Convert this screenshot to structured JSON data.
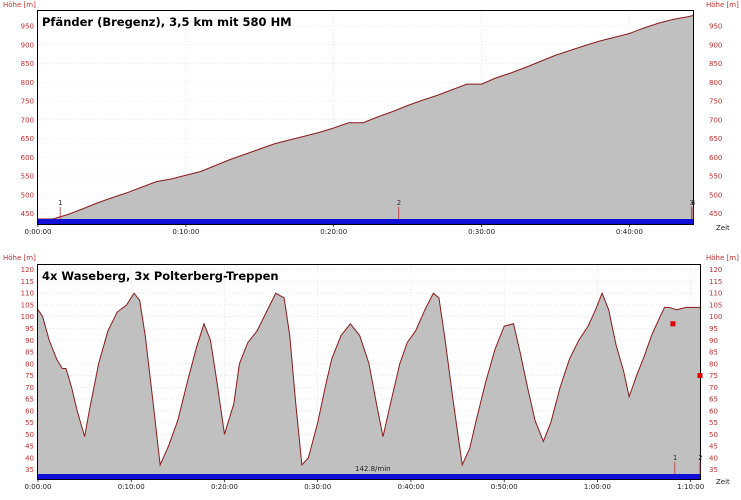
{
  "colors": {
    "profile_fill": "#c0c0c0",
    "profile_line": "#8b1a1a",
    "track_bar": "#1010d8",
    "axis_text": "#c03030",
    "grid": "#d8d8d8",
    "marker": "#c03030",
    "point": "#e00000"
  },
  "chart_data": [
    {
      "type": "area",
      "title": "Pfänder (Bregenz), 3,5 km mit 580 HM",
      "ylabel_left": "Höhe [m]",
      "ylabel_right": "Höhe [m]",
      "xlabel": "Zeit",
      "x_unit": "minutes",
      "xlim": [
        0,
        44.3
      ],
      "ylim": [
        422,
        990
      ],
      "y_ticks": [
        450,
        500,
        550,
        600,
        650,
        700,
        750,
        800,
        850,
        900,
        950
      ],
      "x_ticks": [
        {
          "value": 0,
          "label": "0:00:00"
        },
        {
          "value": 10,
          "label": "0:10:00"
        },
        {
          "value": 20,
          "label": "0:20:00"
        },
        {
          "value": 30,
          "label": "0:30:00"
        },
        {
          "value": 40,
          "label": "0:40:00"
        }
      ],
      "markers": [
        {
          "x": 1.5,
          "label": "1"
        },
        {
          "x": 24.4,
          "label": "2"
        },
        {
          "x": 44.2,
          "label": "3"
        },
        {
          "x": 44.3,
          "label": "4"
        }
      ],
      "series": [
        {
          "x": [
            0,
            1,
            2,
            3,
            4,
            5,
            6,
            7,
            8,
            9,
            10,
            11,
            12,
            13,
            14,
            15,
            16,
            17,
            18,
            19,
            20,
            21,
            22,
            23,
            24,
            25,
            26,
            27,
            28,
            29,
            30,
            31,
            32,
            33,
            34,
            35,
            36,
            37,
            38,
            39,
            40,
            41,
            42,
            43,
            44,
            44.3
          ],
          "y": [
            418,
            433,
            447,
            462,
            478,
            492,
            505,
            520,
            535,
            542,
            552,
            562,
            578,
            594,
            608,
            622,
            636,
            646,
            656,
            666,
            678,
            692,
            692,
            708,
            722,
            738,
            752,
            765,
            780,
            795,
            795,
            812,
            825,
            840,
            856,
            872,
            885,
            898,
            910,
            920,
            930,
            945,
            958,
            968,
            975,
            978
          ]
        }
      ]
    },
    {
      "type": "area",
      "title": "4x Waseberg, 3x Polterberg-Treppen",
      "ylabel_left": "Höhe [m]",
      "ylabel_right": "Höhe [m]",
      "xlabel": "Zeit",
      "x_unit": "minutes",
      "xlim": [
        0,
        71
      ],
      "ylim": [
        31,
        122
      ],
      "y_ticks": [
        35,
        40,
        45,
        50,
        55,
        60,
        65,
        70,
        75,
        80,
        85,
        90,
        95,
        100,
        105,
        110,
        115,
        120
      ],
      "x_ticks": [
        {
          "value": 0,
          "label": "0:00:00"
        },
        {
          "value": 10,
          "label": "0:10:00"
        },
        {
          "value": 20,
          "label": "0:20:00"
        },
        {
          "value": 30,
          "label": "0:30:00"
        },
        {
          "value": 40,
          "label": "0:40:00"
        },
        {
          "value": 50,
          "label": "0:50:00"
        },
        {
          "value": 60,
          "label": "1:00:00"
        },
        {
          "value": 70,
          "label": "1:10:00"
        }
      ],
      "markers": [
        {
          "x": 68.3,
          "label": "1"
        },
        {
          "x": 71,
          "label": "2"
        }
      ],
      "speed_label": "142.8/min",
      "points": [
        {
          "x": 68.1,
          "y": 97
        },
        {
          "x": 71,
          "y": 75
        }
      ],
      "series": [
        {
          "x": [
            0,
            0.5,
            1.2,
            2.0,
            2.6,
            3.0,
            3.6,
            4.2,
            5.0,
            5.5,
            6.5,
            7.5,
            8.5,
            9.5,
            10.3,
            10.9,
            11.5,
            12.3,
            13.1,
            14.0,
            15.0,
            16.0,
            17.0,
            17.8,
            18.5,
            19.2,
            20.0,
            21.0,
            21.6,
            22.5,
            23.5,
            24.5,
            25.5,
            26.4,
            27.0,
            27.6,
            28.3,
            29.0,
            30.0,
            30.8,
            31.5,
            32.5,
            33.5,
            34.5,
            35.5,
            36.3,
            37.0,
            37.8,
            38.8,
            39.6,
            40.5,
            41.5,
            42.4,
            43.0,
            43.6,
            44.5,
            45.5,
            46.3,
            47.0,
            48.0,
            49.0,
            50.0,
            51.0,
            51.7,
            52.5,
            53.3,
            54.2,
            55.0,
            56.0,
            57.0,
            58.0,
            59.0,
            59.8,
            60.5,
            61.2,
            62.0,
            62.8,
            63.4,
            64.2,
            65.0,
            65.8,
            66.6,
            67.2,
            67.7,
            68.5,
            69.5,
            70.3,
            71.0
          ],
          "y": [
            103,
            100,
            90,
            82,
            78,
            78,
            70,
            60,
            49,
            60,
            80,
            94,
            102,
            105,
            110,
            107,
            92,
            65,
            37,
            45,
            56,
            72,
            87,
            97,
            90,
            72,
            50,
            63,
            80,
            89,
            94,
            102,
            110,
            108,
            92,
            65,
            37,
            40,
            55,
            70,
            82,
            92,
            97,
            92,
            80,
            63,
            49,
            63,
            80,
            89,
            94,
            103,
            110,
            108,
            92,
            65,
            37,
            44,
            56,
            72,
            86,
            96,
            97,
            85,
            70,
            56,
            47,
            55,
            70,
            82,
            90,
            96,
            103,
            110,
            103,
            88,
            77,
            66,
            75,
            83,
            92,
            99,
            104,
            104,
            103,
            104,
            104,
            104
          ]
        }
      ]
    }
  ]
}
